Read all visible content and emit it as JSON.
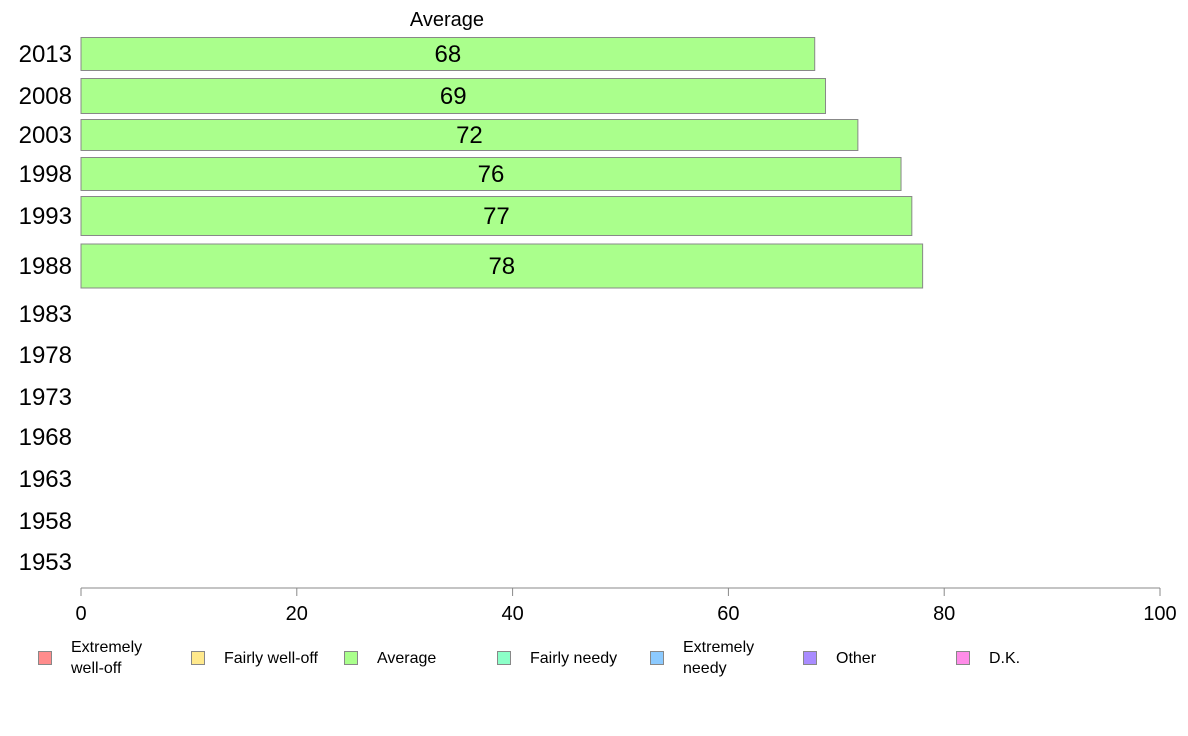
{
  "chart_data": {
    "type": "bar",
    "orientation": "horizontal",
    "series_title": "Average",
    "categories": [
      "2013",
      "2008",
      "2003",
      "1998",
      "1993",
      "1988",
      "1983",
      "1978",
      "1973",
      "1968",
      "1963",
      "1958",
      "1953"
    ],
    "series": [
      {
        "name": "Average",
        "color": "#aaff8c",
        "values": [
          68,
          69,
          72,
          76,
          77,
          78,
          null,
          null,
          null,
          null,
          null,
          null,
          null
        ]
      }
    ],
    "data_labels": [
      "68",
      "69",
      "72",
      "76",
      "77",
      "78"
    ],
    "xlim": [
      0,
      100
    ],
    "x_ticks": [
      "0",
      "20",
      "40",
      "60",
      "80",
      "100"
    ],
    "grid": false,
    "legend_position": "bottom"
  },
  "legend": [
    {
      "label": "Extremely\nwell-off",
      "color": "#ff8c8c"
    },
    {
      "label": "Fairly well-off",
      "color": "#ffe98c"
    },
    {
      "label": "Average",
      "color": "#aaff8c"
    },
    {
      "label": "Fairly needy",
      "color": "#8cffc8"
    },
    {
      "label": "Extremely\nneedy",
      "color": "#8ccaff"
    },
    {
      "label": "Other",
      "color": "#a98cff"
    },
    {
      "label": "D.K.",
      "color": "#ff8ce8"
    }
  ]
}
